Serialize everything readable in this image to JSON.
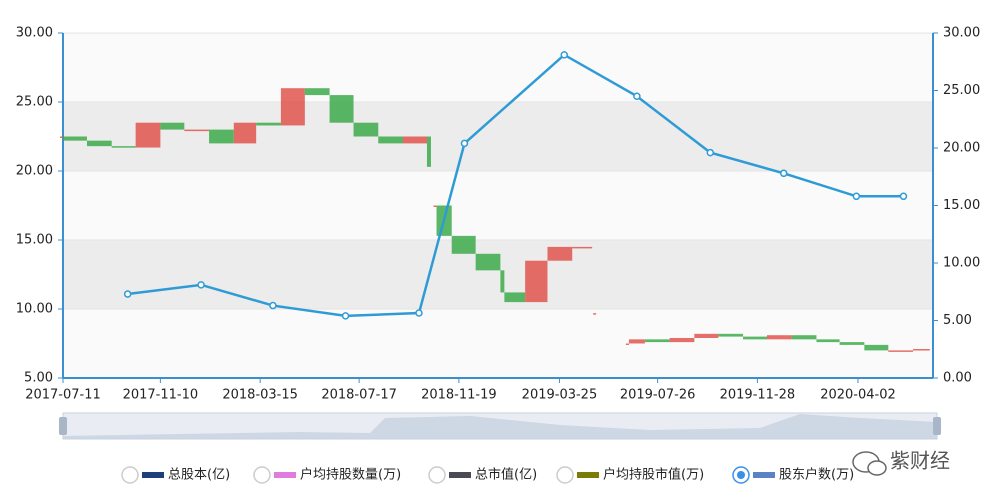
{
  "chart_data": {
    "type": "candle-line",
    "xlim": [
      "2017-07-11",
      "2020-07-05"
    ],
    "xticks": [
      "2017-07-11",
      "2017-11-10",
      "2018-03-15",
      "2018-07-17",
      "2018-11-19",
      "2019-03-25",
      "2019-07-26",
      "2019-11-28",
      "2020-04-02"
    ],
    "ylim": [
      5,
      30
    ],
    "yticks": [
      {
        "value": 5,
        "label": "5.00"
      },
      {
        "value": 10,
        "label": "10.00"
      },
      {
        "value": 15,
        "label": "15.00"
      },
      {
        "value": 20,
        "label": "20.00"
      },
      {
        "value": 25,
        "label": "25.00"
      },
      {
        "value": 30,
        "label": "30.00"
      }
    ],
    "y2lim": [
      0,
      30
    ],
    "y2ticks": [
      {
        "value": 0,
        "label": "0.00"
      },
      {
        "value": 5,
        "label": "5.00"
      },
      {
        "value": 10,
        "label": "10.00"
      },
      {
        "value": 15,
        "label": "15.00"
      },
      {
        "value": 20,
        "label": "20.00"
      },
      {
        "value": 25,
        "label": "25.00"
      },
      {
        "value": 30,
        "label": "30.00"
      }
    ],
    "grid": true,
    "price": {
      "up_color": "#e0554e",
      "down_color": "#3daa4b",
      "x": [
        "2017-07-11",
        "2017-08-10",
        "2017-09-10",
        "2017-10-10",
        "2017-11-10",
        "2017-12-10",
        "2018-01-10",
        "2018-02-10",
        "2018-03-10",
        "2018-04-10",
        "2018-05-10",
        "2018-06-10",
        "2018-07-10",
        "2018-08-10",
        "2018-09-10",
        "2018-10-10",
        "2018-10-15",
        "2018-10-20",
        "2018-10-22",
        "2018-11-10",
        "2018-12-10",
        "2019-01-10",
        "2019-01-15",
        "2019-02-10",
        "2019-03-10",
        "2019-04-10",
        "2019-05-05",
        "2019-05-08",
        "2019-05-10",
        "2019-05-25",
        "2019-06-20",
        "2019-07-10",
        "2019-08-10",
        "2019-09-10",
        "2019-10-10",
        "2019-11-10",
        "2019-12-10",
        "2020-01-10",
        "2020-02-10",
        "2020-03-10",
        "2020-04-10",
        "2020-05-10",
        "2020-06-10",
        "2020-07-01"
      ],
      "values": [
        22.5,
        22.2,
        21.8,
        21.7,
        23.5,
        23.0,
        23.0,
        22.0,
        23.5,
        23.3,
        26.0,
        25.5,
        23.5,
        22.5,
        22.0,
        22.5,
        20.3,
        null,
        17.5,
        15.3,
        14.0,
        12.8,
        11.2,
        10.5,
        13.5,
        14.5,
        14.5,
        null,
        9.7,
        null,
        7.5,
        7.8,
        7.6,
        7.9,
        8.2,
        8.0,
        7.8,
        8.1,
        7.8,
        7.6,
        7.4,
        7.0,
        7.0,
        7.1
      ]
    },
    "series": [
      {
        "name": "股东户数(万)",
        "color": "#2f9bd6",
        "axis": "y2",
        "x": [
          "2017-09-30",
          "2017-12-31",
          "2018-03-31",
          "2018-06-30",
          "2018-09-30",
          "2018-11-26",
          "2019-03-31",
          "2019-06-30",
          "2019-09-30",
          "2019-12-31",
          "2020-03-31",
          "2020-05-29"
        ],
        "values": [
          7.3,
          8.1,
          6.3,
          5.4,
          5.65,
          20.4,
          28.1,
          24.5,
          19.6,
          17.8,
          15.8,
          15.8
        ]
      }
    ],
    "legend": [
      {
        "name": "总股本(亿)",
        "color": "#1d3f7a",
        "selected": false
      },
      {
        "name": "户均持股数量(万)",
        "color": "#e07be0",
        "selected": false
      },
      {
        "name": "总市值(亿)",
        "color": "#4a4a55",
        "selected": false
      },
      {
        "name": "户均持股市值(万)",
        "color": "#7b7b08",
        "selected": false
      },
      {
        "name": "股东户数(万)",
        "color": "#5b83c4",
        "selected": true
      }
    ],
    "watermark": "紫财经"
  }
}
